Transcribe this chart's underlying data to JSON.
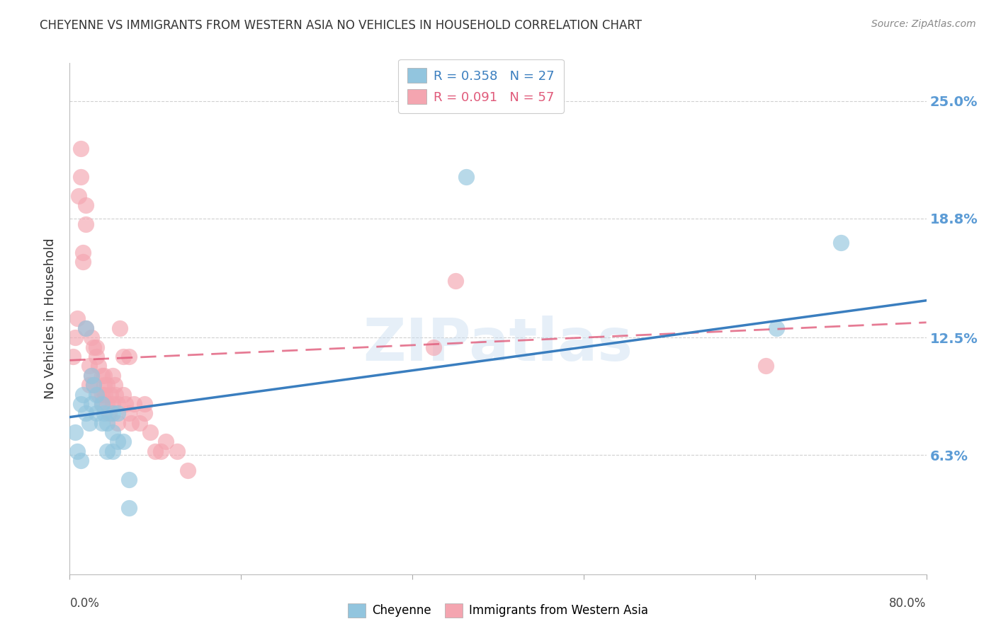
{
  "title": "CHEYENNE VS IMMIGRANTS FROM WESTERN ASIA NO VEHICLES IN HOUSEHOLD CORRELATION CHART",
  "source": "Source: ZipAtlas.com",
  "ylabel": "No Vehicles in Household",
  "ytick_labels": [
    "25.0%",
    "18.8%",
    "12.5%",
    "6.3%"
  ],
  "ytick_values": [
    0.25,
    0.188,
    0.125,
    0.063
  ],
  "xlim": [
    0.0,
    0.8
  ],
  "ylim": [
    0.0,
    0.27
  ],
  "legend_blue_label": "Cheyenne",
  "legend_pink_label": "Immigrants from Western Asia",
  "blue_color": "#92c5de",
  "pink_color": "#f4a5b0",
  "blue_line_color": "#3a7ebf",
  "pink_line_color": "#e05a7a",
  "watermark": "ZIPatlas",
  "blue_points_x": [
    0.005,
    0.007,
    0.01,
    0.01,
    0.012,
    0.015,
    0.015,
    0.018,
    0.02,
    0.02,
    0.022,
    0.025,
    0.025,
    0.03,
    0.03,
    0.032,
    0.035,
    0.035,
    0.04,
    0.04,
    0.04,
    0.045,
    0.045,
    0.05,
    0.055,
    0.055,
    0.37,
    0.66,
    0.72
  ],
  "blue_points_y": [
    0.075,
    0.065,
    0.09,
    0.06,
    0.095,
    0.13,
    0.085,
    0.08,
    0.105,
    0.09,
    0.1,
    0.095,
    0.085,
    0.09,
    0.08,
    0.085,
    0.08,
    0.065,
    0.085,
    0.075,
    0.065,
    0.085,
    0.07,
    0.07,
    0.05,
    0.035,
    0.21,
    0.13,
    0.175
  ],
  "pink_points_x": [
    0.003,
    0.005,
    0.007,
    0.008,
    0.01,
    0.01,
    0.012,
    0.012,
    0.015,
    0.015,
    0.015,
    0.018,
    0.018,
    0.02,
    0.02,
    0.022,
    0.022,
    0.025,
    0.025,
    0.027,
    0.027,
    0.03,
    0.03,
    0.03,
    0.032,
    0.032,
    0.033,
    0.035,
    0.035,
    0.037,
    0.038,
    0.04,
    0.04,
    0.042,
    0.043,
    0.045,
    0.045,
    0.047,
    0.05,
    0.05,
    0.052,
    0.055,
    0.055,
    0.057,
    0.06,
    0.065,
    0.07,
    0.07,
    0.075,
    0.08,
    0.085,
    0.09,
    0.1,
    0.11,
    0.34,
    0.36,
    0.65
  ],
  "pink_points_y": [
    0.115,
    0.125,
    0.135,
    0.2,
    0.225,
    0.21,
    0.17,
    0.165,
    0.195,
    0.185,
    0.13,
    0.11,
    0.1,
    0.125,
    0.105,
    0.12,
    0.1,
    0.12,
    0.115,
    0.11,
    0.095,
    0.105,
    0.095,
    0.09,
    0.105,
    0.1,
    0.095,
    0.1,
    0.09,
    0.085,
    0.095,
    0.105,
    0.09,
    0.1,
    0.095,
    0.09,
    0.08,
    0.13,
    0.115,
    0.095,
    0.09,
    0.085,
    0.115,
    0.08,
    0.09,
    0.08,
    0.09,
    0.085,
    0.075,
    0.065,
    0.065,
    0.07,
    0.065,
    0.055,
    0.12,
    0.155,
    0.11
  ],
  "background_color": "#ffffff",
  "grid_color": "#d0d0d0"
}
